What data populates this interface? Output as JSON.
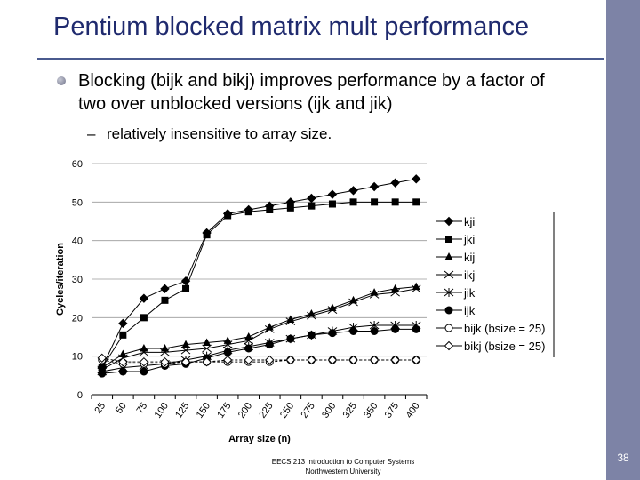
{
  "slide": {
    "title": "Pentium blocked matrix mult performance",
    "bullet": "Blocking (bijk and bikj) improves performance by a factor of two over unblocked versions (ijk and jik)",
    "sub_bullet": "relatively insensitive to array size.",
    "sub_bullet_marker": "–",
    "footer_line1": "EECS 213 Introduction to Computer Systems",
    "footer_line2": "Northwestern University",
    "page_number": "38",
    "colors": {
      "title": "#1f2a6e",
      "sidebar": "#7d83a6",
      "rule": "#4a5a8e"
    }
  },
  "chart_data": {
    "type": "line",
    "xlabel": "Array size (n)",
    "ylabel": "Cycles/iteration",
    "x": [
      25,
      50,
      75,
      100,
      125,
      150,
      175,
      200,
      225,
      250,
      275,
      300,
      325,
      350,
      375,
      400
    ],
    "ylim": [
      0,
      60
    ],
    "yticks": [
      0,
      10,
      20,
      30,
      40,
      50,
      60
    ],
    "grid": "horizontal",
    "legend_position": "right",
    "series": [
      {
        "name": "kji",
        "marker": "diamond-filled",
        "values": [
          7,
          18.5,
          25,
          27.5,
          29.5,
          42,
          47,
          48,
          49,
          50,
          51,
          52,
          53,
          54,
          55,
          56
        ]
      },
      {
        "name": "jki",
        "marker": "square-filled",
        "values": [
          7,
          15.5,
          20,
          24.5,
          27.5,
          41.5,
          46.5,
          47.5,
          48,
          48.5,
          49,
          49.5,
          50,
          50,
          50,
          50
        ]
      },
      {
        "name": "kij",
        "marker": "triangle-filled",
        "values": [
          7,
          10.5,
          12,
          12,
          13,
          13.5,
          14,
          15,
          17.5,
          19.5,
          21,
          22.5,
          24.5,
          26.5,
          27.5,
          28
        ]
      },
      {
        "name": "ikj",
        "marker": "x",
        "values": [
          6.5,
          9.5,
          11,
          11,
          11.5,
          12,
          13,
          14,
          17,
          19,
          20.5,
          22,
          24,
          26,
          26.5,
          27.5
        ]
      },
      {
        "name": "jik",
        "marker": "asterisk",
        "values": [
          6,
          7,
          7.5,
          8,
          9,
          10,
          11.5,
          12.5,
          13.5,
          14.5,
          15.5,
          16.5,
          17.5,
          18,
          18,
          18
        ]
      },
      {
        "name": "ijk",
        "marker": "circle-filled",
        "values": [
          5.5,
          6,
          6,
          7.5,
          8,
          9.5,
          11,
          12,
          13,
          14.5,
          15.5,
          16,
          16.5,
          16.5,
          17,
          17
        ]
      },
      {
        "name": "bijk (bsize = 25)",
        "marker": "circle-open",
        "values": [
          9,
          8,
          8,
          8,
          8.5,
          8.5,
          8.5,
          8.5,
          8.5,
          9,
          9,
          9,
          9,
          9,
          9,
          9
        ]
      },
      {
        "name": "bikj (bsize = 25)",
        "marker": "diamond-open",
        "values": [
          9.5,
          8.5,
          8.5,
          8.5,
          8.5,
          8.5,
          9,
          9,
          9,
          9,
          9,
          9,
          9,
          9,
          9,
          9
        ]
      }
    ]
  }
}
